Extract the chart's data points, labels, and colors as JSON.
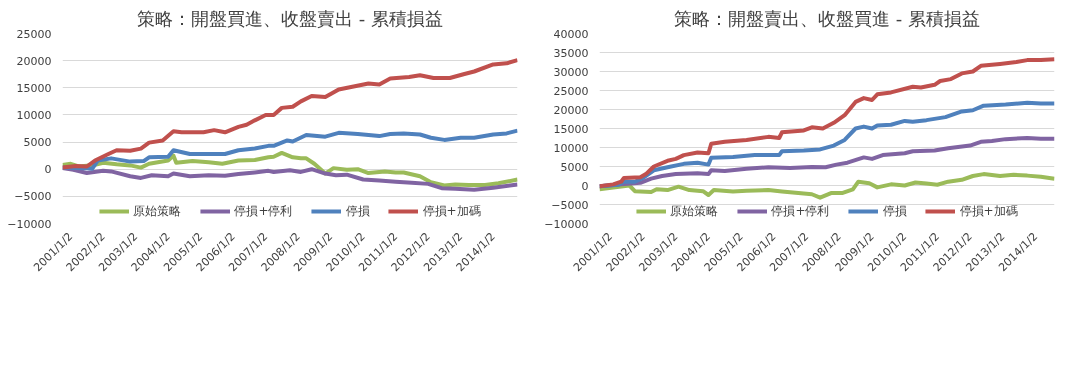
{
  "chart_data": [
    {
      "type": "line",
      "title": "策略：開盤買進、收盤賣出 - 累積損益",
      "xlim": [
        "2000-10",
        "2014-10"
      ],
      "ylim": [
        -10000,
        25000
      ],
      "yticks": [
        -10000,
        -5000,
        0,
        5000,
        10000,
        15000,
        20000,
        25000
      ],
      "xticks": [
        {
          "value": "2001-01-02",
          "label": "2001/1/2"
        },
        {
          "value": "2002-01-02",
          "label": "2002/1/2"
        },
        {
          "value": "2003-01-02",
          "label": "2003/1/2"
        },
        {
          "value": "2004-01-02",
          "label": "2004/1/2"
        },
        {
          "value": "2005-01-02",
          "label": "2005/1/2"
        },
        {
          "value": "2006-01-02",
          "label": "2006/1/2"
        },
        {
          "value": "2007-01-02",
          "label": "2007/1/2"
        },
        {
          "value": "2008-01-02",
          "label": "2008/1/2"
        },
        {
          "value": "2009-01-02",
          "label": "2009/1/2"
        },
        {
          "value": "2010-01-02",
          "label": "2010/1/2"
        },
        {
          "value": "2011-01-02",
          "label": "2011/1/2"
        },
        {
          "value": "2012-01-02",
          "label": "2012/1/2"
        },
        {
          "value": "2013-01-02",
          "label": "2013/1/2"
        },
        {
          "value": "2014-01-02",
          "label": "2014/1/2"
        }
      ],
      "grid": "y",
      "legend": "bottom",
      "marker": "none",
      "line_style": "solid",
      "series": [
        {
          "name": "原始策略",
          "color": "#9bbb59",
          "x": [
            "2000-10",
            "2001-01",
            "2001-04",
            "2001-10",
            "2002-01",
            "2002-06",
            "2002-11",
            "2003-03",
            "2003-06",
            "2004-01",
            "2004-03",
            "2004-04",
            "2004-10",
            "2005-04",
            "2005-09",
            "2006-03",
            "2006-09",
            "2007-02",
            "2007-04",
            "2007-07",
            "2007-11",
            "2008-02",
            "2008-04",
            "2008-07",
            "2008-11",
            "2009-02",
            "2009-07",
            "2009-11",
            "2010-03",
            "2010-09",
            "2011-01",
            "2011-04",
            "2011-10",
            "2012-02",
            "2012-07",
            "2012-11",
            "2013-04",
            "2013-10",
            "2014-03",
            "2014-10"
          ],
          "values": [
            800,
            1000,
            500,
            800,
            1200,
            900,
            700,
            300,
            1000,
            1600,
            2500,
            1200,
            1500,
            1300,
            1000,
            1600,
            1700,
            2200,
            2300,
            3000,
            2200,
            2000,
            2000,
            1000,
            -800,
            200,
            -100,
            0,
            -700,
            -400,
            -600,
            -600,
            -1300,
            -2400,
            -3000,
            -2800,
            -2900,
            -2900,
            -2600,
            -1900
          ]
        },
        {
          "name": "停損+停利",
          "color": "#8064a2",
          "x": [
            "2000-10",
            "2001-02",
            "2001-07",
            "2002-01",
            "2002-04",
            "2002-11",
            "2003-03",
            "2003-07",
            "2004-01",
            "2004-03",
            "2004-09",
            "2005-04",
            "2005-10",
            "2006-03",
            "2006-09",
            "2007-02",
            "2007-04",
            "2007-10",
            "2008-02",
            "2008-06",
            "2008-11",
            "2009-03",
            "2009-07",
            "2010-01",
            "2010-07",
            "2011-01",
            "2011-07",
            "2012-01",
            "2012-06",
            "2012-11",
            "2013-06",
            "2014-01",
            "2014-10"
          ],
          "values": [
            200,
            -100,
            -700,
            -300,
            -400,
            -1300,
            -1600,
            -1100,
            -1300,
            -800,
            -1300,
            -1100,
            -1200,
            -900,
            -600,
            -300,
            -500,
            -200,
            -500,
            0,
            -800,
            -1100,
            -1000,
            -1900,
            -2100,
            -2300,
            -2500,
            -2700,
            -3500,
            -3600,
            -3800,
            -3400,
            -2800
          ]
        },
        {
          "name": "停損",
          "color": "#4f81bd",
          "x": [
            "2000-10",
            "2001-06",
            "2001-09",
            "2001-11",
            "2002-04",
            "2002-11",
            "2003-04",
            "2003-06",
            "2004-01",
            "2004-03",
            "2004-09",
            "2005-04",
            "2005-10",
            "2006-03",
            "2006-09",
            "2007-02",
            "2007-04",
            "2007-09",
            "2007-11",
            "2008-04",
            "2008-11",
            "2009-04",
            "2009-11",
            "2010-07",
            "2010-11",
            "2011-04",
            "2011-10",
            "2012-02",
            "2012-07",
            "2013-01",
            "2013-06",
            "2014-01",
            "2014-06",
            "2014-10"
          ],
          "values": [
            300,
            200,
            100,
            1600,
            2000,
            1400,
            1500,
            2200,
            2300,
            3500,
            2800,
            2800,
            2800,
            3500,
            3800,
            4300,
            4300,
            5300,
            5100,
            6300,
            6000,
            6700,
            6500,
            6100,
            6500,
            6600,
            6400,
            5800,
            5400,
            5800,
            5800,
            6400,
            6600,
            7100
          ]
        },
        {
          "name": "停損+加碼",
          "color": "#c0504d",
          "x": [
            "2000-10",
            "2001-03",
            "2001-07",
            "2001-10",
            "2002-03",
            "2002-06",
            "2002-11",
            "2003-03",
            "2003-06",
            "2003-11",
            "2004-03",
            "2004-06",
            "2005-02",
            "2005-06",
            "2005-10",
            "2006-03",
            "2006-06",
            "2006-09",
            "2007-01",
            "2007-04",
            "2007-07",
            "2007-11",
            "2008-02",
            "2008-06",
            "2008-11",
            "2009-04",
            "2009-09",
            "2010-03",
            "2010-07",
            "2010-11",
            "2011-06",
            "2011-10",
            "2012-03",
            "2012-09",
            "2013-02",
            "2013-06",
            "2014-01",
            "2014-06",
            "2014-10"
          ],
          "values": [
            300,
            600,
            500,
            1600,
            2800,
            3500,
            3400,
            3800,
            4900,
            5300,
            7000,
            6800,
            6800,
            7200,
            6800,
            7800,
            8200,
            9000,
            10000,
            10000,
            11300,
            11500,
            12500,
            13500,
            13300,
            14700,
            15200,
            15800,
            15600,
            16700,
            17000,
            17300,
            16800,
            16800,
            17500,
            18000,
            19300,
            19500,
            20100
          ]
        }
      ]
    },
    {
      "type": "line",
      "title": "策略：開盤賣出、收盤買進 - 累積損益",
      "xlim": [
        "2000-09",
        "2014-08"
      ],
      "ylim": [
        -10000,
        40000
      ],
      "yticks": [
        -10000,
        -5000,
        0,
        5000,
        10000,
        15000,
        20000,
        25000,
        30000,
        35000,
        40000
      ],
      "xticks": [
        {
          "value": "2001-01-02",
          "label": "2001/1/2"
        },
        {
          "value": "2002-01-02",
          "label": "2002/1/2"
        },
        {
          "value": "2003-01-02",
          "label": "2003/1/2"
        },
        {
          "value": "2004-01-02",
          "label": "2004/1/2"
        },
        {
          "value": "2005-01-02",
          "label": "2005/1/2"
        },
        {
          "value": "2006-01-02",
          "label": "2006/1/2"
        },
        {
          "value": "2007-01-02",
          "label": "2007/1/2"
        },
        {
          "value": "2008-01-02",
          "label": "2008/1/2"
        },
        {
          "value": "2009-01-02",
          "label": "2009/1/2"
        },
        {
          "value": "2010-01-02",
          "label": "2010/1/2"
        },
        {
          "value": "2011-01-02",
          "label": "2011/1/2"
        },
        {
          "value": "2012-01-02",
          "label": "2012/1/2"
        },
        {
          "value": "2013-01-02",
          "label": "2013/1/2"
        },
        {
          "value": "2014-01-02",
          "label": "2014/1/2"
        }
      ],
      "grid": "y",
      "legend": "bottom",
      "marker": "none",
      "line_style": "solid",
      "series": [
        {
          "name": "原始策略",
          "color": "#9bbb59",
          "x": [
            "2000-09",
            "2001-02",
            "2001-08",
            "2001-10",
            "2002-04",
            "2002-06",
            "2002-10",
            "2003-02",
            "2003-06",
            "2003-11",
            "2004-01",
            "2004-03",
            "2004-10",
            "2005-03",
            "2005-11",
            "2006-04",
            "2006-10",
            "2007-03",
            "2007-06",
            "2007-10",
            "2008-02",
            "2008-06",
            "2008-08",
            "2008-12",
            "2009-03",
            "2009-08",
            "2010-01",
            "2010-05",
            "2010-09",
            "2011-01",
            "2011-05",
            "2011-10",
            "2012-02",
            "2012-06",
            "2012-12",
            "2013-05",
            "2013-10",
            "2014-03",
            "2014-08"
          ],
          "values": [
            -1000,
            -500,
            0,
            -1500,
            -1700,
            -1000,
            -1200,
            -300,
            -1200,
            -1500,
            -2500,
            -1200,
            -1600,
            -1400,
            -1200,
            -1600,
            -2000,
            -2300,
            -3200,
            -2000,
            -2000,
            -1000,
            1000,
            600,
            -500,
            300,
            0,
            800,
            500,
            200,
            1000,
            1500,
            2500,
            3000,
            2500,
            2800,
            2600,
            2300,
            1800
          ]
        },
        {
          "name": "停損+停利",
          "color": "#8064a2",
          "x": [
            "2000-09",
            "2001-05",
            "2001-12",
            "2002-04",
            "2002-08",
            "2003-01",
            "2003-09",
            "2004-01",
            "2004-02",
            "2004-07",
            "2005-03",
            "2005-11",
            "2006-07",
            "2007-03",
            "2007-08",
            "2007-12",
            "2008-04",
            "2008-10",
            "2009-01",
            "2009-05",
            "2010-01",
            "2010-04",
            "2010-12",
            "2011-05",
            "2012-01",
            "2012-05",
            "2012-09",
            "2013-02",
            "2013-10",
            "2014-03",
            "2014-08"
          ],
          "values": [
            -200,
            300,
            700,
            1800,
            2500,
            3000,
            3200,
            3000,
            4000,
            3800,
            4400,
            4800,
            4600,
            4900,
            4800,
            5500,
            6000,
            7400,
            7000,
            8000,
            8500,
            9000,
            9200,
            9800,
            10500,
            11500,
            11700,
            12200,
            12500,
            12300,
            12300
          ]
        },
        {
          "name": "停損",
          "color": "#4f81bd",
          "x": [
            "2000-09",
            "2001-04",
            "2001-06",
            "2001-10",
            "2002-01",
            "2002-05",
            "2002-10",
            "2003-04",
            "2003-09",
            "2004-01",
            "2004-02",
            "2004-10",
            "2005-06",
            "2006-03",
            "2006-04",
            "2006-12",
            "2007-06",
            "2007-11",
            "2008-03",
            "2008-07",
            "2008-10",
            "2009-01",
            "2009-03",
            "2009-08",
            "2010-01",
            "2010-04",
            "2010-09",
            "2011-04",
            "2011-10",
            "2012-02",
            "2012-06",
            "2013-02",
            "2013-10",
            "2014-03",
            "2014-08"
          ],
          "values": [
            -200,
            200,
            1000,
            1000,
            2000,
            4000,
            4800,
            5700,
            6000,
            5500,
            7300,
            7500,
            8000,
            8000,
            9000,
            9200,
            9500,
            10500,
            12000,
            15000,
            15500,
            15000,
            15800,
            16000,
            17000,
            16800,
            17200,
            18000,
            19500,
            19800,
            21000,
            21300,
            21800,
            21600,
            21600
          ]
        },
        {
          "name": "停損+加碼",
          "color": "#c0504d",
          "x": [
            "2000-09",
            "2001-02",
            "2001-05",
            "2001-06",
            "2001-12",
            "2002-02",
            "2002-05",
            "2002-10",
            "2003-01",
            "2003-04",
            "2003-09",
            "2004-01",
            "2004-02",
            "2004-07",
            "2005-03",
            "2005-11",
            "2006-03",
            "2006-04",
            "2006-12",
            "2007-03",
            "2007-07",
            "2007-11",
            "2008-03",
            "2008-07",
            "2008-10",
            "2009-01",
            "2009-03",
            "2009-08",
            "2010-04",
            "2010-07",
            "2010-12",
            "2011-02",
            "2011-06",
            "2011-10",
            "2012-02",
            "2012-05",
            "2012-12",
            "2013-06",
            "2013-10",
            "2014-03",
            "2014-08"
          ],
          "values": [
            -200,
            300,
            1000,
            2000,
            2200,
            3000,
            5000,
            6500,
            7000,
            8000,
            8700,
            8500,
            11000,
            11500,
            12000,
            12800,
            12500,
            14000,
            14500,
            15300,
            15000,
            16500,
            18500,
            22000,
            23000,
            22500,
            24000,
            24500,
            26000,
            25800,
            26500,
            27500,
            28000,
            29500,
            30000,
            31500,
            32000,
            32500,
            33000,
            33000,
            33200
          ]
        }
      ]
    }
  ]
}
